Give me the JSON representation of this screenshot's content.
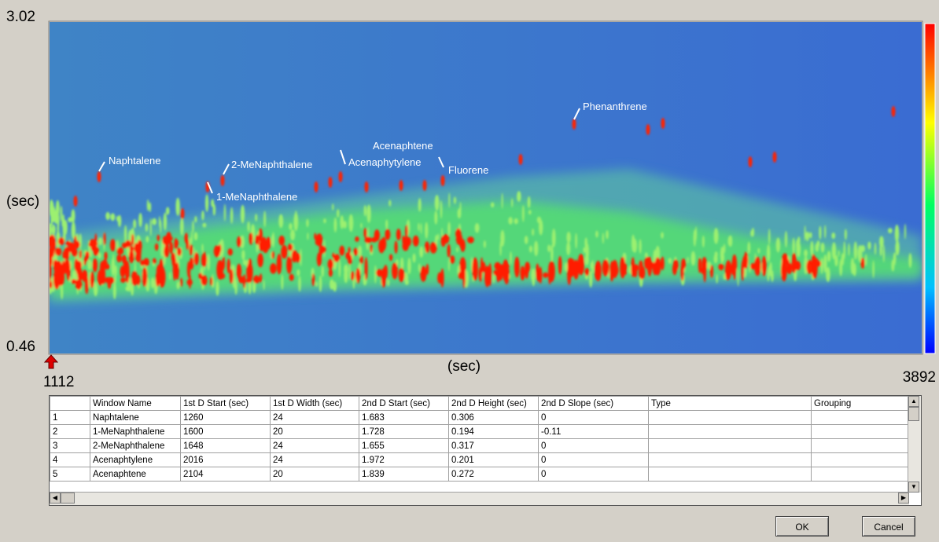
{
  "plot": {
    "y_top": 3.02,
    "y_bottom": 0.46,
    "y_unit": "(sec)",
    "x_start": 1112,
    "x_end": 3892,
    "x_unit": "(sec)",
    "annotations": [
      "Naphtalene",
      "1-MeNaphthalene",
      "2-MeNaphthalene",
      "Acenaphytylene",
      "Acenaphtene",
      "Fluorene",
      "Phenanthrene"
    ]
  },
  "table": {
    "columns": [
      "Window Name",
      "1st D Start (sec)",
      "1st D Width (sec)",
      "2nd D Start (sec)",
      "2nd D Height (sec)",
      "2nd D Slope (sec)",
      "Type",
      "Grouping"
    ],
    "rows": [
      [
        1,
        "Naphtalene",
        1260,
        24,
        1.683,
        0.306,
        0
      ],
      [
        2,
        "1-MeNaphthalene",
        1600,
        20,
        1.728,
        0.194,
        -0.11
      ],
      [
        3,
        "2-MeNaphthalene",
        1648,
        24,
        1.655,
        0.317,
        0
      ],
      [
        4,
        "Acenaphtylene",
        2016,
        24,
        1.972,
        0.201,
        0
      ],
      [
        5,
        "Acenaphtene",
        2104,
        20,
        1.839,
        0.272,
        0
      ]
    ]
  },
  "buttons": {
    "ok": "OK",
    "cancel": "Cancel"
  }
}
